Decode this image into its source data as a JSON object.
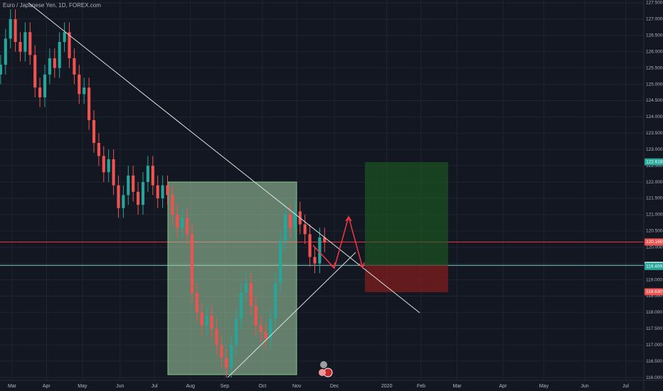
{
  "chart_data": {
    "type": "candlestick",
    "title": "Euro / Japanese Yen, 1D, FOREX.com",
    "up_color": "#26a69a",
    "down_color": "#ef5350",
    "grid": true,
    "x": [
      -7,
      -4,
      -1,
      2,
      5,
      8,
      11,
      14,
      17,
      20,
      23,
      26,
      29,
      32,
      35,
      38,
      41,
      44,
      47,
      50,
      53,
      56,
      59,
      62,
      65,
      68,
      71,
      74,
      77,
      80,
      83,
      86,
      89,
      92,
      95,
      98,
      101,
      104,
      107,
      110,
      113,
      116,
      119,
      122,
      125,
      128,
      131,
      134,
      137,
      140,
      143,
      146,
      149,
      152,
      155,
      158,
      161,
      164,
      167,
      170,
      173,
      176,
      179,
      182,
      185,
      188,
      191
    ],
    "open": [
      125.3,
      125.6,
      126.4,
      127.0,
      126.3,
      126.0,
      126.6,
      125.9,
      124.9,
      124.6,
      125.3,
      125.8,
      125.5,
      126.3,
      126.6,
      125.8,
      125.3,
      124.7,
      124.9,
      123.9,
      123.2,
      122.8,
      122.3,
      122.7,
      121.9,
      121.2,
      121.6,
      122.2,
      121.7,
      121.3,
      122.0,
      122.5,
      121.9,
      121.5,
      121.9,
      121.6,
      121.0,
      120.6,
      120.9,
      120.4,
      118.6,
      118.0,
      117.6,
      117.9,
      117.5,
      117.0,
      116.6,
      116.3,
      117.0,
      117.8,
      118.6,
      118.9,
      118.2,
      117.6,
      117.4,
      117.2,
      117.8,
      118.9,
      120.2,
      121.0,
      120.6,
      121.1,
      120.7,
      120.4,
      119.7,
      119.5,
      120.3
    ],
    "high": [
      125.9,
      126.7,
      127.3,
      127.3,
      126.6,
      126.9,
      126.9,
      126.2,
      125.2,
      125.6,
      126.1,
      126.1,
      126.6,
      126.9,
      126.9,
      126.1,
      125.6,
      125.2,
      125.2,
      124.2,
      123.5,
      123.1,
      123.0,
      123.0,
      122.2,
      121.9,
      122.5,
      122.5,
      122.0,
      122.3,
      122.8,
      122.8,
      122.2,
      122.2,
      122.2,
      121.9,
      121.3,
      121.2,
      121.2,
      120.7,
      118.9,
      118.3,
      118.2,
      118.2,
      117.8,
      117.3,
      116.9,
      117.3,
      118.1,
      118.9,
      119.2,
      119.2,
      118.5,
      117.9,
      117.7,
      118.1,
      119.2,
      120.5,
      121.3,
      121.3,
      121.4,
      121.4,
      121.0,
      120.7,
      120.0,
      120.6,
      120.6
    ],
    "low": [
      125.0,
      125.3,
      126.1,
      126.0,
      125.7,
      125.7,
      125.6,
      124.6,
      124.3,
      124.3,
      125.0,
      125.2,
      125.2,
      126.0,
      125.5,
      125.0,
      124.4,
      124.4,
      123.6,
      122.9,
      122.5,
      122.0,
      122.0,
      121.6,
      120.9,
      120.9,
      121.3,
      121.4,
      121.0,
      121.0,
      121.7,
      121.6,
      121.2,
      121.2,
      121.3,
      120.7,
      120.3,
      120.3,
      120.1,
      118.3,
      117.7,
      117.3,
      117.3,
      117.2,
      116.7,
      116.3,
      116.0,
      116.0,
      116.7,
      117.5,
      118.3,
      117.9,
      117.3,
      117.1,
      116.9,
      116.9,
      117.5,
      118.6,
      119.9,
      120.3,
      120.3,
      120.4,
      120.1,
      119.4,
      119.2,
      119.2,
      119.85
    ],
    "close": [
      125.6,
      126.4,
      127.0,
      126.3,
      126.0,
      126.6,
      125.9,
      124.9,
      124.6,
      125.3,
      125.8,
      125.5,
      126.3,
      126.6,
      125.8,
      125.3,
      124.7,
      124.9,
      123.9,
      123.2,
      122.8,
      122.3,
      122.7,
      121.9,
      121.2,
      121.6,
      122.2,
      121.7,
      121.3,
      122.0,
      122.5,
      121.9,
      121.5,
      121.9,
      121.6,
      121.0,
      120.6,
      120.9,
      120.4,
      118.6,
      118.0,
      117.6,
      117.9,
      117.5,
      117.0,
      116.6,
      116.3,
      117.0,
      117.8,
      118.6,
      118.9,
      118.2,
      117.6,
      117.4,
      117.2,
      117.8,
      118.9,
      120.2,
      121.0,
      120.6,
      121.1,
      120.7,
      120.4,
      119.7,
      119.5,
      120.3,
      120.15
    ],
    "xlim": [
      -7.39,
      386.1
    ],
    "xticks": [
      {
        "value": 0,
        "label": "Mar"
      },
      {
        "value": 21,
        "label": "Apr"
      },
      {
        "value": 43,
        "label": "May"
      },
      {
        "value": 66,
        "label": "Jun"
      },
      {
        "value": 87,
        "label": "Jul"
      },
      {
        "value": 109,
        "label": "Aug"
      },
      {
        "value": 130,
        "label": "Sep"
      },
      {
        "value": 153,
        "label": "Oct"
      },
      {
        "value": 174,
        "label": "Nov"
      },
      {
        "value": 197,
        "label": "Dec"
      },
      {
        "value": 229,
        "label": "2020"
      },
      {
        "value": 250,
        "label": "Feb"
      },
      {
        "value": 272,
        "label": "Mar"
      },
      {
        "value": 300,
        "label": "Apr"
      },
      {
        "value": 325,
        "label": "May"
      },
      {
        "value": 350,
        "label": "Jun"
      },
      {
        "value": 375,
        "label": "Jul"
      }
    ],
    "ylim": [
      115.914,
      127.587
    ],
    "yticks": [
      {
        "value": 116,
        "label": "116.000"
      },
      {
        "value": 116.5,
        "label": "116.500"
      },
      {
        "value": 117,
        "label": "117.000"
      },
      {
        "value": 117.5,
        "label": "117.500"
      },
      {
        "value": 118,
        "label": "118.000"
      },
      {
        "value": 118.5,
        "label": "118.500"
      },
      {
        "value": 119,
        "label": "119.000"
      },
      {
        "value": 119.5,
        "label": "119.500"
      },
      {
        "value": 120,
        "label": "120.000"
      },
      {
        "value": 120.5,
        "label": "120.500"
      },
      {
        "value": 121,
        "label": "121.000"
      },
      {
        "value": 121.5,
        "label": "121.500"
      },
      {
        "value": 122,
        "label": "122.000"
      },
      {
        "value": 122.5,
        "label": "122.500"
      },
      {
        "value": 123,
        "label": "123.000"
      },
      {
        "value": 123.5,
        "label": "123.500"
      },
      {
        "value": 124,
        "label": "124.000"
      },
      {
        "value": 124.5,
        "label": "124.500"
      },
      {
        "value": 125,
        "label": "125.000"
      },
      {
        "value": 125.5,
        "label": "125.500"
      },
      {
        "value": 126,
        "label": "126.000"
      },
      {
        "value": 126.5,
        "label": "126.500"
      },
      {
        "value": 127,
        "label": "127.000"
      },
      {
        "value": 127.5,
        "label": "127.500"
      }
    ],
    "price_labels": [
      {
        "value": 122.618,
        "label": "122.618",
        "color": "#26a69a"
      },
      {
        "value": 120.16,
        "label": "120.160",
        "color": "#ef5350"
      },
      {
        "value": 119.442,
        "label": "119.442",
        "color": "#b2dfdb"
      },
      {
        "value": 119.409,
        "label": "119.409",
        "color": "#26a69a"
      },
      {
        "value": 118.63,
        "label": "118.630",
        "color": "#ef5350"
      }
    ]
  }
}
